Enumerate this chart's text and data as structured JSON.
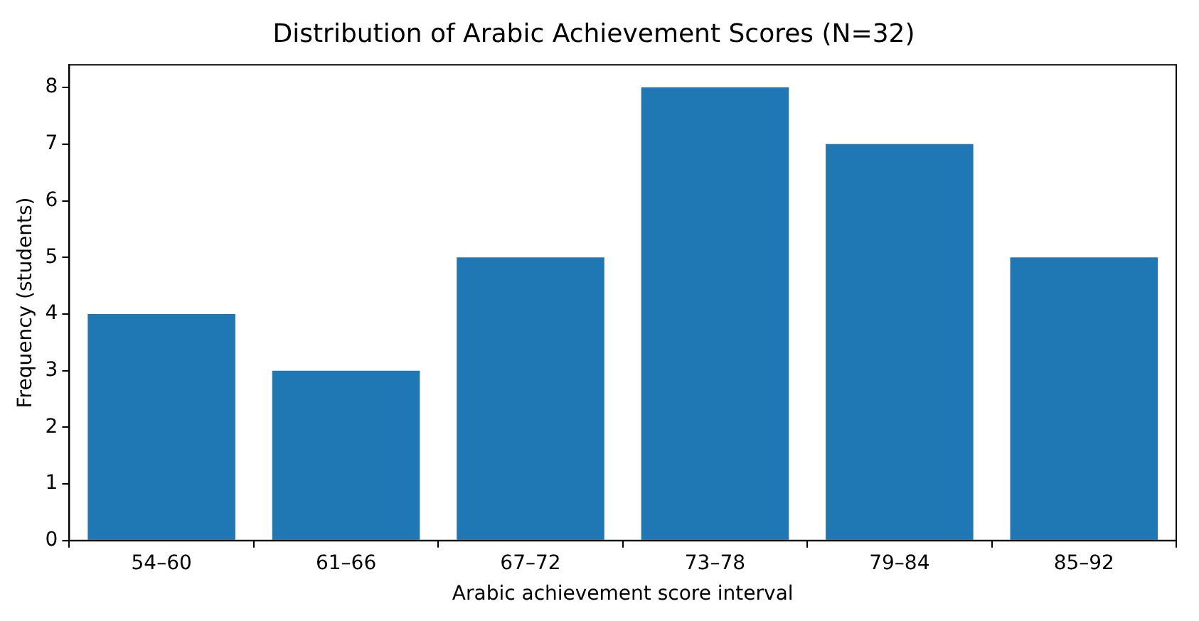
{
  "chart_data": {
    "type": "bar",
    "title": "Distribution of Arabic Achievement Scores (N=32)",
    "xlabel": "Arabic achievement score interval",
    "ylabel": "Frequency (students)",
    "categories": [
      "54–60",
      "61–66",
      "67–72",
      "73–78",
      "79–84",
      "85–92"
    ],
    "values": [
      4,
      3,
      5,
      8,
      7,
      5
    ],
    "color": "#1f77b4",
    "ylim": [
      0,
      8.4
    ],
    "yticks": [
      0,
      1,
      2,
      3,
      4,
      5,
      6,
      7,
      8
    ],
    "grid": false,
    "legend": false
  }
}
